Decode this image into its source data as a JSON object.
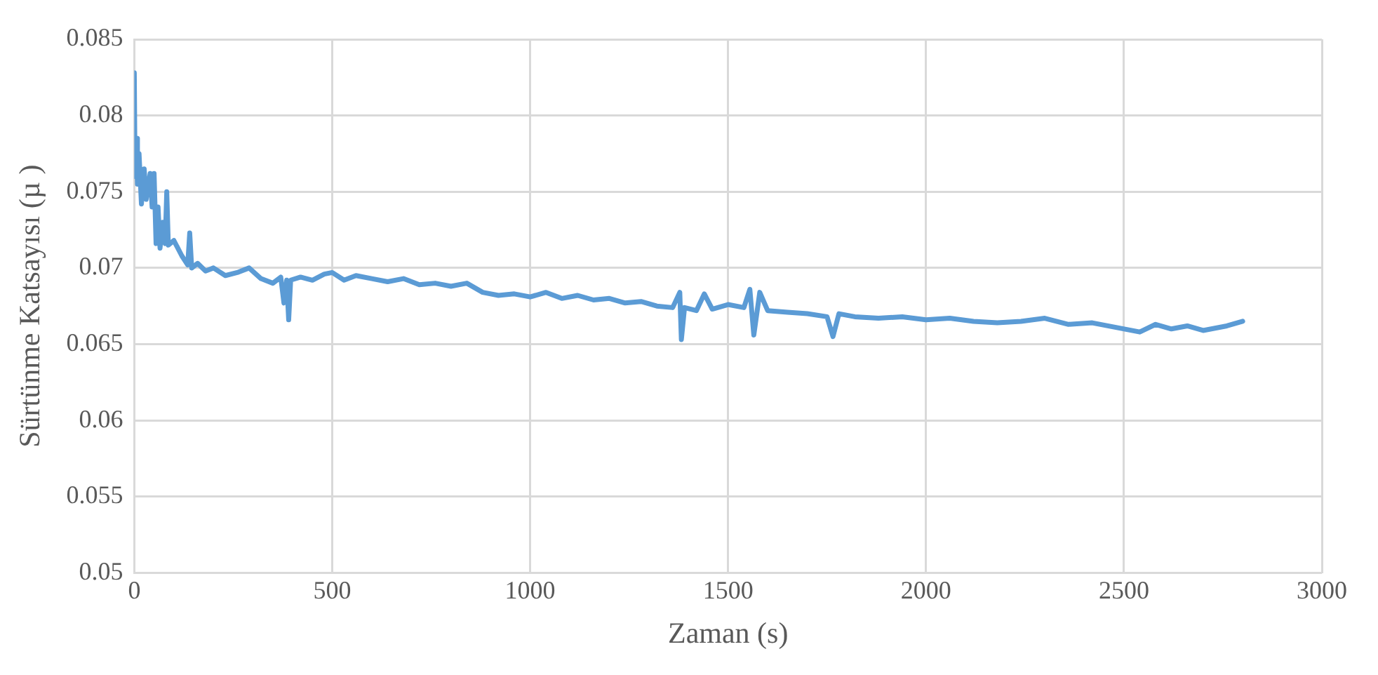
{
  "chart_data": {
    "type": "line",
    "xlabel": "Zaman (s)",
    "ylabel": "Sürtünme Katsayısı (µ )",
    "xlim": [
      0,
      3000
    ],
    "xticks": [
      0,
      500,
      1000,
      1500,
      2000,
      2500,
      3000
    ],
    "ylim": [
      0.05,
      0.085
    ],
    "yticks": [
      0.05,
      0.055,
      0.06,
      0.065,
      0.07,
      0.075,
      0.08,
      0.085
    ],
    "grid": true,
    "legend": false,
    "marker": "none",
    "line_style": "solid",
    "series": [
      {
        "color": "#5b9bd5",
        "x": [
          0,
          2,
          5,
          8,
          12,
          18,
          25,
          30,
          40,
          45,
          50,
          55,
          60,
          65,
          72,
          78,
          82,
          86,
          100,
          120,
          135,
          140,
          145,
          160,
          180,
          200,
          230,
          260,
          290,
          320,
          350,
          370,
          378,
          385,
          390,
          395,
          420,
          450,
          480,
          500,
          530,
          560,
          600,
          640,
          680,
          720,
          760,
          800,
          840,
          880,
          920,
          960,
          1000,
          1040,
          1080,
          1120,
          1160,
          1200,
          1240,
          1280,
          1320,
          1360,
          1378,
          1382,
          1390,
          1420,
          1440,
          1460,
          1500,
          1540,
          1555,
          1565,
          1580,
          1600,
          1650,
          1700,
          1750,
          1765,
          1780,
          1820,
          1880,
          1940,
          2000,
          2060,
          2120,
          2180,
          2240,
          2300,
          2360,
          2420,
          2480,
          2540,
          2580,
          2620,
          2660,
          2700,
          2760,
          2800
        ],
        "values": [
          0.0828,
          0.076,
          0.0785,
          0.0755,
          0.0775,
          0.0742,
          0.0765,
          0.0745,
          0.0762,
          0.074,
          0.0762,
          0.0716,
          0.074,
          0.0713,
          0.073,
          0.0716,
          0.075,
          0.0715,
          0.0718,
          0.0708,
          0.0702,
          0.0723,
          0.07,
          0.0703,
          0.0698,
          0.07,
          0.0695,
          0.0697,
          0.07,
          0.0693,
          0.069,
          0.0694,
          0.0677,
          0.0692,
          0.0666,
          0.0692,
          0.0694,
          0.0692,
          0.0696,
          0.0697,
          0.0692,
          0.0695,
          0.0693,
          0.0691,
          0.0693,
          0.0689,
          0.069,
          0.0688,
          0.069,
          0.0684,
          0.0682,
          0.0683,
          0.0681,
          0.0684,
          0.068,
          0.0682,
          0.0679,
          0.068,
          0.0677,
          0.0678,
          0.0675,
          0.0674,
          0.0684,
          0.0653,
          0.0674,
          0.0672,
          0.0683,
          0.0673,
          0.0676,
          0.0674,
          0.0686,
          0.0656,
          0.0684,
          0.0672,
          0.0671,
          0.067,
          0.0668,
          0.0655,
          0.067,
          0.0668,
          0.0667,
          0.0668,
          0.0666,
          0.0667,
          0.0665,
          0.0664,
          0.0665,
          0.0667,
          0.0663,
          0.0664,
          0.0661,
          0.0658,
          0.0663,
          0.066,
          0.0662,
          0.0659,
          0.0662,
          0.0665
        ]
      }
    ]
  }
}
